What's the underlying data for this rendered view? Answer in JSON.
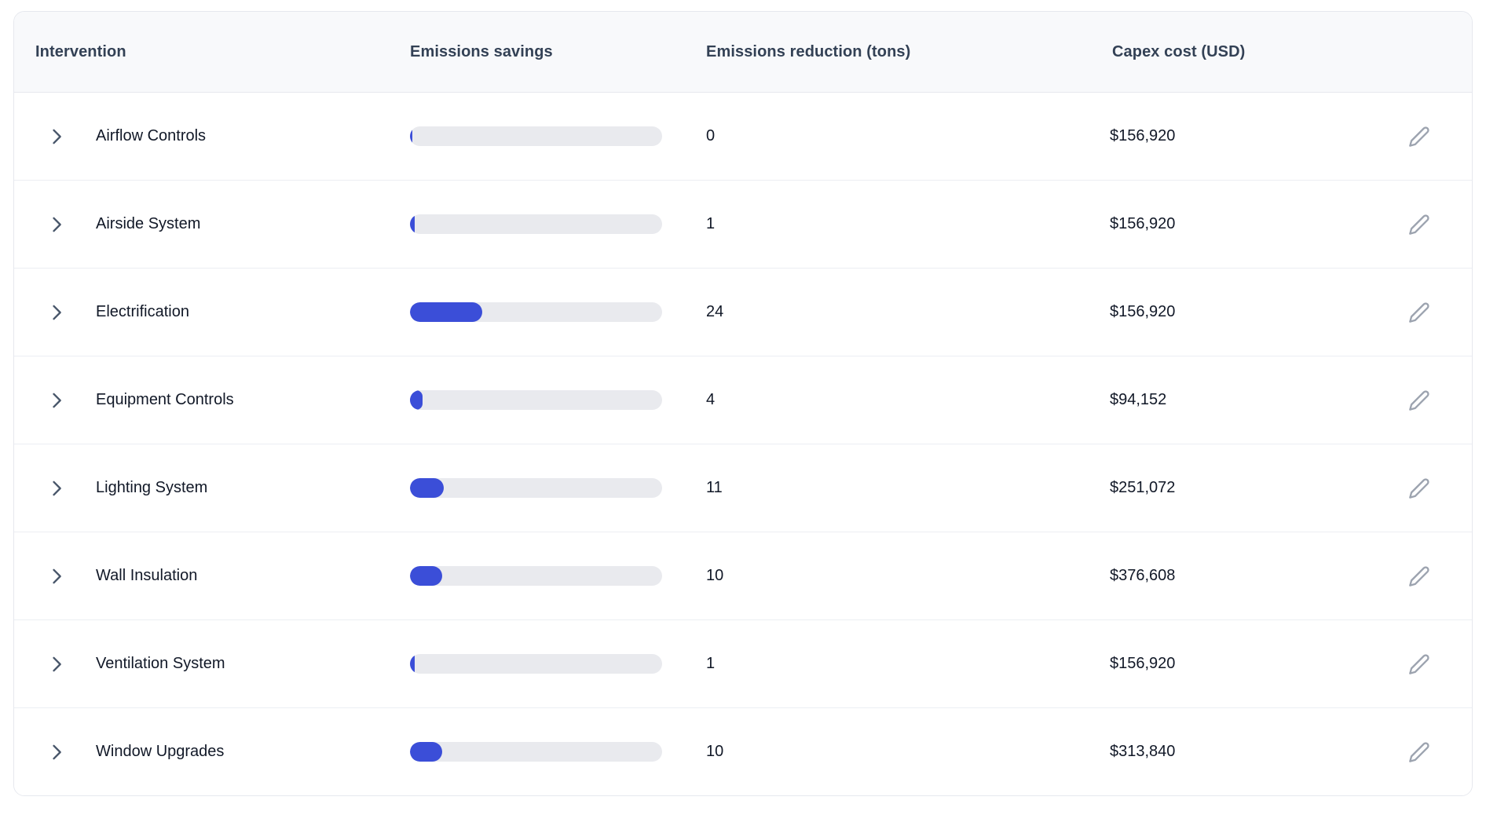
{
  "table": {
    "columns": {
      "intervention": "Intervention",
      "savings": "Emissions savings",
      "reduction": "Emissions reduction (tons)",
      "capex": "Capex cost (USD)"
    },
    "rows": [
      {
        "name": "Airflow Controls",
        "savings_fill_pct": 1.0,
        "reduction_tons": "0",
        "capex": "$156,920"
      },
      {
        "name": "Airside System",
        "savings_fill_pct": 1.9,
        "reduction_tons": "1",
        "capex": "$156,920"
      },
      {
        "name": "Electrification",
        "savings_fill_pct": 28.7,
        "reduction_tons": "24",
        "capex": "$156,920"
      },
      {
        "name": "Equipment Controls",
        "savings_fill_pct": 5.0,
        "reduction_tons": "4",
        "capex": "$94,152"
      },
      {
        "name": "Lighting System",
        "savings_fill_pct": 13.4,
        "reduction_tons": "11",
        "capex": "$251,072"
      },
      {
        "name": "Wall Insulation",
        "savings_fill_pct": 12.8,
        "reduction_tons": "10",
        "capex": "$376,608"
      },
      {
        "name": "Ventilation System",
        "savings_fill_pct": 1.9,
        "reduction_tons": "1",
        "capex": "$156,920"
      },
      {
        "name": "Window Upgrades",
        "savings_fill_pct": 12.8,
        "reduction_tons": "10",
        "capex": "$313,840"
      }
    ]
  },
  "icons": {
    "row_expander": "chevron-right-icon",
    "edit": "pencil-icon"
  },
  "colors": {
    "bar_fill": "#3b4ed8",
    "bar_track": "#e9eaee",
    "header_bg": "#f8f9fb",
    "header_text": "#334155",
    "row_text": "#111827",
    "chevron": "#475569",
    "pencil": "#9ca3af",
    "border": "#e6e8ee"
  }
}
